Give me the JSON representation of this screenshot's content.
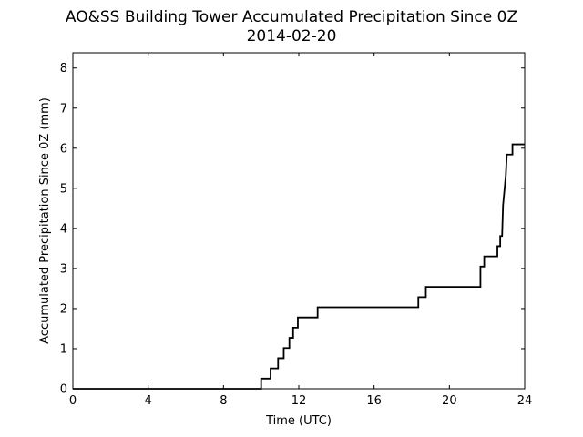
{
  "chart_data": {
    "type": "line",
    "title": "AO&SS Building Tower Accumulated Precipitation Since 0Z",
    "subtitle": "2014-02-20",
    "xlabel": "Time (UTC)",
    "ylabel": "Accumulated Precipitation Since 0Z (mm)",
    "xlim": [
      0,
      24
    ],
    "ylim": [
      0,
      8.38
    ],
    "xticks": [
      "0",
      "4",
      "8",
      "12",
      "16",
      "20",
      "24"
    ],
    "yticks": [
      "0",
      "1",
      "2",
      "3",
      "4",
      "5",
      "6",
      "7",
      "8"
    ],
    "grid": false,
    "series": [
      {
        "color": "#000000",
        "points": [
          [
            0.0,
            0.0
          ],
          [
            10.0,
            0.0
          ],
          [
            10.0,
            0.254
          ],
          [
            10.5,
            0.254
          ],
          [
            10.5,
            0.508
          ],
          [
            10.9,
            0.508
          ],
          [
            10.9,
            0.762
          ],
          [
            11.2,
            0.762
          ],
          [
            11.2,
            1.016
          ],
          [
            11.5,
            1.016
          ],
          [
            11.5,
            1.27
          ],
          [
            11.7,
            1.27
          ],
          [
            11.7,
            1.524
          ],
          [
            11.95,
            1.524
          ],
          [
            11.95,
            1.778
          ],
          [
            13.0,
            1.778
          ],
          [
            13.0,
            2.032
          ],
          [
            18.35,
            2.032
          ],
          [
            18.35,
            2.286
          ],
          [
            18.75,
            2.286
          ],
          [
            18.75,
            2.54
          ],
          [
            21.65,
            2.54
          ],
          [
            21.65,
            3.048
          ],
          [
            21.85,
            3.048
          ],
          [
            21.85,
            3.302
          ],
          [
            22.55,
            3.302
          ],
          [
            22.55,
            3.556
          ],
          [
            22.7,
            3.556
          ],
          [
            22.7,
            3.81
          ],
          [
            22.8,
            3.81
          ],
          [
            22.85,
            4.572
          ],
          [
            22.95,
            5.08
          ],
          [
            23.0,
            5.334
          ],
          [
            23.05,
            5.842
          ],
          [
            23.35,
            5.842
          ],
          [
            23.35,
            6.096
          ],
          [
            24.0,
            6.096
          ]
        ]
      }
    ]
  }
}
